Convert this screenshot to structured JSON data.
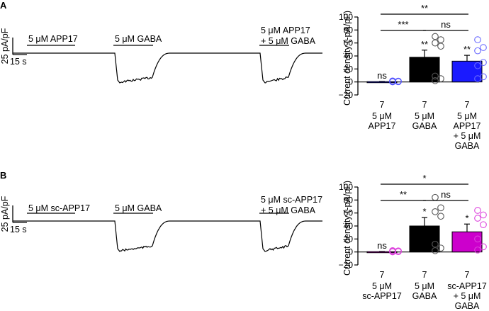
{
  "panels": [
    {
      "letter": "A",
      "trace": {
        "labels": [
          "5 μM APP17",
          "5 μM GABA",
          "5 μM APP17",
          "+ 5 μM GABA"
        ],
        "scale_y": "25 pA/pF",
        "scale_x": "15 s"
      },
      "chart_data": {
        "type": "bar",
        "ylabel": "Current density (-pA/pF)",
        "ylim": [
          -20,
          100
        ],
        "yticks": [
          -20,
          0,
          20,
          40,
          60,
          80,
          100
        ],
        "ytick_labels": [
          "−20",
          "0",
          "20",
          "40",
          "60",
          "80",
          "100"
        ],
        "n_labels": [
          "7",
          "7",
          "7"
        ],
        "categories": [
          [
            "5 μM",
            "APP17"
          ],
          [
            "5 μM",
            "GABA"
          ],
          [
            "5 μM",
            "APP17",
            "+ 5 μM",
            "GABA"
          ]
        ],
        "values": [
          0.5,
          38,
          32
        ],
        "errors": [
          0.3,
          11,
          9
        ],
        "bar_colors": [
          "#1a1aff",
          "#000000",
          "#1a1aff"
        ],
        "bar_significance": [
          "ns",
          "**",
          "**"
        ],
        "points": [
          [
            0.2,
            0.4,
            0.6,
            0.8,
            1.0,
            1.2,
            1.5
          ],
          [
            2,
            5,
            9,
            55,
            60,
            65,
            70
          ],
          [
            5,
            8,
            25,
            30,
            48,
            53,
            65
          ]
        ],
        "point_colors": [
          "#5555ff",
          "#555555",
          "#6a6aff"
        ],
        "brackets": [
          {
            "from": 0,
            "to": 2,
            "label": "**",
            "y": 1
          },
          {
            "from": 0,
            "to": 1,
            "label": "***",
            "y": 2
          },
          {
            "from": 1,
            "to": 2,
            "label": "ns",
            "y": 2
          }
        ]
      }
    },
    {
      "letter": "B",
      "trace": {
        "labels": [
          "5 μM sc-APP17",
          "5 μM GABA",
          "5 μM sc-APP17",
          "+ 5 μM GABA"
        ],
        "scale_y": "25 pA/pF",
        "scale_x": "15 s"
      },
      "chart_data": {
        "type": "bar",
        "ylabel": "Current density (-pA/pF)",
        "ylim": [
          -20,
          100
        ],
        "yticks": [
          -20,
          0,
          20,
          40,
          60,
          80,
          100
        ],
        "ytick_labels": [
          "−20",
          "0",
          "20",
          "40",
          "60",
          "80",
          "100"
        ],
        "n_labels": [
          "7",
          "7",
          "7"
        ],
        "categories": [
          [
            "5 μM",
            "sc-APP17"
          ],
          [
            "5 μM",
            "GABA"
          ],
          [
            "sc-APP17",
            "+ 5 μM",
            "GABA"
          ]
        ],
        "values": [
          0.5,
          40,
          31
        ],
        "errors": [
          0.3,
          13,
          12
        ],
        "bar_colors": [
          "#cc00cc",
          "#000000",
          "#cc00cc"
        ],
        "bar_significance": [
          "ns",
          "*",
          "*"
        ],
        "points": [
          [
            0.2,
            0.5,
            0.8,
            1.0,
            1.3,
            1.6,
            2.0
          ],
          [
            2,
            6,
            12,
            55,
            62,
            68,
            84
          ],
          [
            3,
            8,
            20,
            42,
            52,
            57,
            64
          ]
        ],
        "point_colors": [
          "#dd44dd",
          "#555555",
          "#dd44dd"
        ],
        "brackets": [
          {
            "from": 0,
            "to": 2,
            "label": "*",
            "y": 1
          },
          {
            "from": 0,
            "to": 1,
            "label": "**",
            "y": 2
          },
          {
            "from": 1,
            "to": 2,
            "label": "ns",
            "y": 2
          }
        ]
      }
    }
  ]
}
